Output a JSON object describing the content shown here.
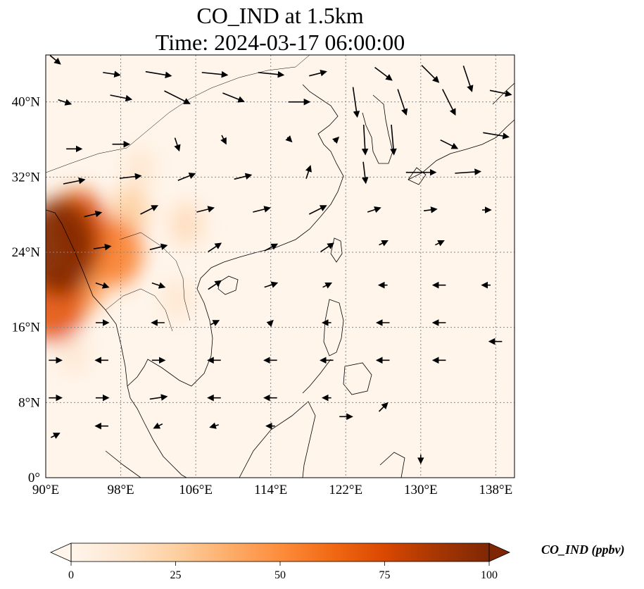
{
  "title": {
    "line1": "CO_IND at 1.5km",
    "line2": "Time: 2024-03-17 06:00:00"
  },
  "map": {
    "lon_range": [
      90,
      140
    ],
    "lat_range": [
      0,
      45
    ],
    "lon_ticks": [
      {
        "value": 90,
        "label": "90°E"
      },
      {
        "value": 98,
        "label": "98°E"
      },
      {
        "value": 106,
        "label": "106°E"
      },
      {
        "value": 114,
        "label": "114°E"
      },
      {
        "value": 122,
        "label": "122°E"
      },
      {
        "value": 130,
        "label": "130°E"
      },
      {
        "value": 138,
        "label": "138°E"
      }
    ],
    "lat_ticks": [
      {
        "value": 0,
        "label": "0°"
      },
      {
        "value": 8,
        "label": "8°N"
      },
      {
        "value": 16,
        "label": "16°N"
      },
      {
        "value": 24,
        "label": "24°N"
      },
      {
        "value": 32,
        "label": "32°N"
      },
      {
        "value": 40,
        "label": "40°N"
      }
    ],
    "gridlines": true,
    "concentration_hotspots": [
      {
        "lon": 91.5,
        "lat": 24.5,
        "value": 100
      },
      {
        "lon": 93.5,
        "lat": 26.5,
        "value": 70
      },
      {
        "lon": 91.0,
        "lat": 18.5,
        "value": 70
      },
      {
        "lon": 97.5,
        "lat": 24.0,
        "value": 55
      },
      {
        "lon": 94.0,
        "lat": 21.0,
        "value": 45
      },
      {
        "lon": 99.0,
        "lat": 28.5,
        "value": 25
      },
      {
        "lon": 105.0,
        "lat": 27.0,
        "value": 18
      },
      {
        "lon": 104.0,
        "lat": 19.0,
        "value": 12
      },
      {
        "lon": 100.0,
        "lat": 33.0,
        "value": 12
      },
      {
        "lon": 93.0,
        "lat": 13.0,
        "value": 10
      }
    ],
    "wind_vectors": [
      {
        "lon": 91,
        "lat": 44.5,
        "u": 1.2,
        "v": -1.0
      },
      {
        "lon": 97,
        "lat": 43,
        "u": 2.0,
        "v": -0.3
      },
      {
        "lon": 102,
        "lat": 43,
        "u": 3.0,
        "v": -0.5
      },
      {
        "lon": 108,
        "lat": 43,
        "u": 3.0,
        "v": -0.3
      },
      {
        "lon": 114,
        "lat": 43,
        "u": 3.0,
        "v": -0.3
      },
      {
        "lon": 119,
        "lat": 43,
        "u": 2.0,
        "v": 0.5
      },
      {
        "lon": 126,
        "lat": 43,
        "u": 2.0,
        "v": -1.5
      },
      {
        "lon": 131,
        "lat": 43,
        "u": 2.0,
        "v": -2.0
      },
      {
        "lon": 135,
        "lat": 42.5,
        "u": 1.0,
        "v": -3.0
      },
      {
        "lon": 92,
        "lat": 40,
        "u": 1.5,
        "v": -0.5
      },
      {
        "lon": 98,
        "lat": 40.5,
        "u": 2.5,
        "v": -0.5
      },
      {
        "lon": 104,
        "lat": 40.5,
        "u": 3.0,
        "v": -1.5
      },
      {
        "lon": 110,
        "lat": 40.5,
        "u": 2.5,
        "v": -1.0
      },
      {
        "lon": 117,
        "lat": 40,
        "u": 2.5,
        "v": 0.0
      },
      {
        "lon": 123,
        "lat": 40,
        "u": 0.5,
        "v": -3.5
      },
      {
        "lon": 128,
        "lat": 40,
        "u": 1.0,
        "v": -3.0
      },
      {
        "lon": 133,
        "lat": 40,
        "u": 1.5,
        "v": -3.0
      },
      {
        "lon": 138.5,
        "lat": 41,
        "u": 2.5,
        "v": -0.5
      },
      {
        "lon": 93,
        "lat": 35,
        "u": 1.8,
        "v": 0.0
      },
      {
        "lon": 98,
        "lat": 35.5,
        "u": 2.0,
        "v": 0.0
      },
      {
        "lon": 104,
        "lat": 35.5,
        "u": 0.5,
        "v": -1.5
      },
      {
        "lon": 109,
        "lat": 36,
        "u": 0.5,
        "v": -1.0
      },
      {
        "lon": 116,
        "lat": 36,
        "u": 0.5,
        "v": -0.5
      },
      {
        "lon": 121,
        "lat": 36,
        "u": 0.5,
        "v": 0.5
      },
      {
        "lon": 124,
        "lat": 36,
        "u": 0.2,
        "v": -3.5
      },
      {
        "lon": 127,
        "lat": 36,
        "u": 0.3,
        "v": -3.5
      },
      {
        "lon": 133,
        "lat": 35.5,
        "u": 2.0,
        "v": -1.0
      },
      {
        "lon": 138,
        "lat": 36.5,
        "u": 3.0,
        "v": -0.5
      },
      {
        "lon": 93,
        "lat": 31.5,
        "u": 2.5,
        "v": 0.5
      },
      {
        "lon": 99,
        "lat": 32,
        "u": 2.5,
        "v": 0.3
      },
      {
        "lon": 105,
        "lat": 32,
        "u": 2.0,
        "v": 0.8
      },
      {
        "lon": 111,
        "lat": 32,
        "u": 2.0,
        "v": 0.5
      },
      {
        "lon": 118,
        "lat": 32.5,
        "u": 0.5,
        "v": 1.5
      },
      {
        "lon": 124,
        "lat": 32.5,
        "u": 0.3,
        "v": -2.5
      },
      {
        "lon": 130,
        "lat": 32.5,
        "u": 3.5,
        "v": 0.0
      },
      {
        "lon": 135,
        "lat": 32.5,
        "u": 3.0,
        "v": 0.2
      },
      {
        "lon": 95,
        "lat": 28,
        "u": 2.0,
        "v": 0.5
      },
      {
        "lon": 101,
        "lat": 28.5,
        "u": 2.0,
        "v": 1.0
      },
      {
        "lon": 107,
        "lat": 28.5,
        "u": 2.0,
        "v": 0.5
      },
      {
        "lon": 113,
        "lat": 28.5,
        "u": 2.0,
        "v": 0.5
      },
      {
        "lon": 119,
        "lat": 28.5,
        "u": 2.0,
        "v": 1.0
      },
      {
        "lon": 125,
        "lat": 28.5,
        "u": 1.5,
        "v": 0.5
      },
      {
        "lon": 131,
        "lat": 28.5,
        "u": 1.5,
        "v": 0.2
      },
      {
        "lon": 137,
        "lat": 28.5,
        "u": 1.0,
        "v": 0.0
      },
      {
        "lon": 96,
        "lat": 24.5,
        "u": 2.0,
        "v": 0.3
      },
      {
        "lon": 102,
        "lat": 24.5,
        "u": 2.0,
        "v": 0.5
      },
      {
        "lon": 108,
        "lat": 24.5,
        "u": 1.5,
        "v": 1.0
      },
      {
        "lon": 114,
        "lat": 24.5,
        "u": 1.5,
        "v": 0.8
      },
      {
        "lon": 120,
        "lat": 24.5,
        "u": 1.5,
        "v": 1.0
      },
      {
        "lon": 126,
        "lat": 25,
        "u": 1.0,
        "v": 0.5
      },
      {
        "lon": 132,
        "lat": 25,
        "u": 1.0,
        "v": 0.5
      },
      {
        "lon": 96,
        "lat": 20.5,
        "u": 1.5,
        "v": -0.5
      },
      {
        "lon": 102,
        "lat": 20.5,
        "u": 1.5,
        "v": -0.5
      },
      {
        "lon": 108,
        "lat": 20.5,
        "u": 1.5,
        "v": 1.0
      },
      {
        "lon": 114,
        "lat": 20.5,
        "u": 1.5,
        "v": 0.5
      },
      {
        "lon": 120,
        "lat": 20.5,
        "u": 1.0,
        "v": 0.5
      },
      {
        "lon": 126,
        "lat": 20.5,
        "u": -1.0,
        "v": 0.0
      },
      {
        "lon": 132,
        "lat": 20.5,
        "u": -1.5,
        "v": 0.0
      },
      {
        "lon": 137,
        "lat": 20.5,
        "u": -1.0,
        "v": 0.0
      },
      {
        "lon": 96,
        "lat": 16.5,
        "u": 1.5,
        "v": 0.0
      },
      {
        "lon": 102,
        "lat": 16.5,
        "u": -1.5,
        "v": 0.0
      },
      {
        "lon": 108,
        "lat": 16.5,
        "u": 1.0,
        "v": 0.5
      },
      {
        "lon": 114,
        "lat": 16.5,
        "u": 0.5,
        "v": 0.5
      },
      {
        "lon": 120,
        "lat": 16.5,
        "u": -1.0,
        "v": 0.0
      },
      {
        "lon": 126,
        "lat": 16.5,
        "u": -1.5,
        "v": 0.0
      },
      {
        "lon": 132,
        "lat": 16.5,
        "u": -1.5,
        "v": 0.0
      },
      {
        "lon": 138,
        "lat": 14.5,
        "u": -1.5,
        "v": 0.0
      },
      {
        "lon": 91,
        "lat": 12.5,
        "u": 1.5,
        "v": 0.0
      },
      {
        "lon": 96,
        "lat": 12.5,
        "u": -1.5,
        "v": 0.0
      },
      {
        "lon": 102,
        "lat": 12.5,
        "u": 1.5,
        "v": 0.0
      },
      {
        "lon": 108,
        "lat": 12.5,
        "u": -1.5,
        "v": 0.0
      },
      {
        "lon": 114,
        "lat": 12.5,
        "u": -1.5,
        "v": 0.0
      },
      {
        "lon": 120,
        "lat": 12.5,
        "u": -1.5,
        "v": 0.0
      },
      {
        "lon": 126,
        "lat": 12.5,
        "u": -1.5,
        "v": 0.0
      },
      {
        "lon": 132,
        "lat": 12.5,
        "u": -1.5,
        "v": 0.0
      },
      {
        "lon": 91,
        "lat": 8.5,
        "u": 1.5,
        "v": 0.0
      },
      {
        "lon": 96,
        "lat": 8.5,
        "u": 1.5,
        "v": 0.0
      },
      {
        "lon": 102,
        "lat": 8.5,
        "u": 2.0,
        "v": 0.3
      },
      {
        "lon": 108,
        "lat": 8.5,
        "u": -1.5,
        "v": 0.0
      },
      {
        "lon": 114,
        "lat": 8.5,
        "u": -1.5,
        "v": 0.0
      },
      {
        "lon": 120,
        "lat": 8.5,
        "u": -1.0,
        "v": 0.0
      },
      {
        "lon": 126,
        "lat": 7.5,
        "u": 1.0,
        "v": 1.0
      },
      {
        "lon": 91,
        "lat": 4.5,
        "u": 1.0,
        "v": 0.5
      },
      {
        "lon": 96,
        "lat": 5.5,
        "u": -1.5,
        "v": 0.0
      },
      {
        "lon": 102,
        "lat": 5.5,
        "u": -1.0,
        "v": -0.5
      },
      {
        "lon": 108,
        "lat": 5.5,
        "u": -1.0,
        "v": -0.3
      },
      {
        "lon": 114,
        "lat": 5.5,
        "u": -1.0,
        "v": 0.0
      },
      {
        "lon": 122,
        "lat": 6.5,
        "u": 1.5,
        "v": 0.0
      },
      {
        "lon": 130,
        "lat": 2,
        "u": 0.0,
        "v": -1.0
      }
    ],
    "colors": {
      "land_outline": "#000000",
      "grid": "#888888",
      "vector": "#000000"
    }
  },
  "colorbar": {
    "label": "CO_IND (ppbv)",
    "min": 0,
    "max": 100,
    "ticks": [
      {
        "value": 0,
        "label": "0"
      },
      {
        "value": 25,
        "label": "25"
      },
      {
        "value": 50,
        "label": "50"
      },
      {
        "value": 75,
        "label": "75"
      },
      {
        "value": 100,
        "label": "100"
      }
    ],
    "stops": [
      "#fff5eb",
      "#fee6ce",
      "#fdd0a2",
      "#fdae6b",
      "#fd8d3c",
      "#f16913",
      "#d94801",
      "#a63603",
      "#7f2704"
    ],
    "extend": "both"
  }
}
